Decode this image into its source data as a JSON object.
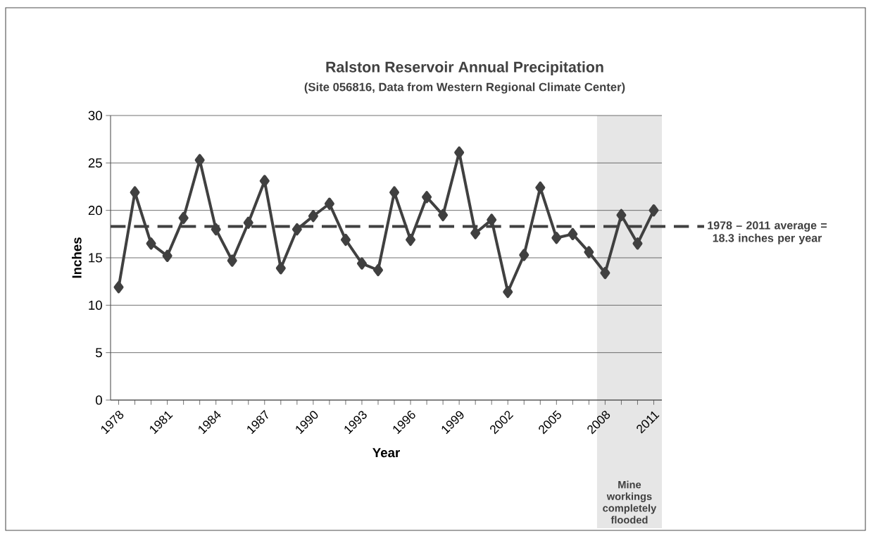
{
  "chart_data": {
    "type": "line",
    "title": "Ralston Reservoir Annual Precipitation",
    "subtitle": "(Site 056816, Data from Western Regional Climate Center)",
    "xlabel": "Year",
    "ylabel": "Inches",
    "x": [
      1978,
      1979,
      1980,
      1981,
      1982,
      1983,
      1984,
      1985,
      1986,
      1987,
      1988,
      1989,
      1990,
      1991,
      1992,
      1993,
      1994,
      1995,
      1996,
      1997,
      1998,
      1999,
      2000,
      2001,
      2002,
      2003,
      2004,
      2005,
      2006,
      2007,
      2008,
      2009,
      2010,
      2011
    ],
    "series": [
      {
        "color": "#404040",
        "values": [
          11.9,
          21.9,
          16.5,
          15.2,
          19.2,
          25.3,
          18.0,
          14.7,
          18.7,
          23.1,
          13.9,
          18.0,
          19.4,
          20.7,
          16.9,
          14.4,
          13.7,
          21.9,
          16.9,
          21.4,
          19.5,
          26.1,
          17.6,
          19.0,
          11.4,
          15.3,
          22.4,
          17.1,
          17.5,
          15.6,
          13.4,
          19.5,
          16.5,
          20.0
        ]
      }
    ],
    "xlim": [
      1977.5,
      2011.5
    ],
    "ylim": [
      0,
      30
    ],
    "xticks": [
      1978,
      {
        "value": 1979,
        "label": null
      },
      {
        "value": 1980,
        "label": null
      },
      1981,
      {
        "value": 1982,
        "label": null
      },
      {
        "value": 1983,
        "label": null
      },
      1984,
      {
        "value": 1985,
        "label": null
      },
      {
        "value": 1986,
        "label": null
      },
      1987,
      {
        "value": 1988,
        "label": null
      },
      {
        "value": 1989,
        "label": null
      },
      1990,
      {
        "value": 1991,
        "label": null
      },
      {
        "value": 1992,
        "label": null
      },
      1993,
      {
        "value": 1994,
        "label": null
      },
      {
        "value": 1995,
        "label": null
      },
      1996,
      {
        "value": 1997,
        "label": null
      },
      {
        "value": 1998,
        "label": null
      },
      1999,
      {
        "value": 2000,
        "label": null
      },
      {
        "value": 2001,
        "label": null
      },
      2002,
      {
        "value": 2003,
        "label": null
      },
      {
        "value": 2004,
        "label": null
      },
      2005,
      {
        "value": 2006,
        "label": null
      },
      {
        "value": 2007,
        "label": null
      },
      2008,
      {
        "value": 2009,
        "label": null
      },
      {
        "value": 2010,
        "label": null
      },
      2011
    ],
    "yticks": [
      0,
      5,
      10,
      15,
      20,
      25,
      30
    ],
    "grid": "y",
    "marker": "diamond",
    "line_style": "solid",
    "ref_lines": [
      {
        "axis": "y",
        "value": 18.3,
        "label": "1978 – 2011 average = 18.3 inches per year",
        "color": "#404040",
        "line_style": "dashed"
      }
    ],
    "bands": [
      {
        "axis": "x",
        "from": 2007.5,
        "to": 2011.5,
        "label": "Mine workings completely flooded",
        "color": "#e6e6e6"
      }
    ]
  }
}
